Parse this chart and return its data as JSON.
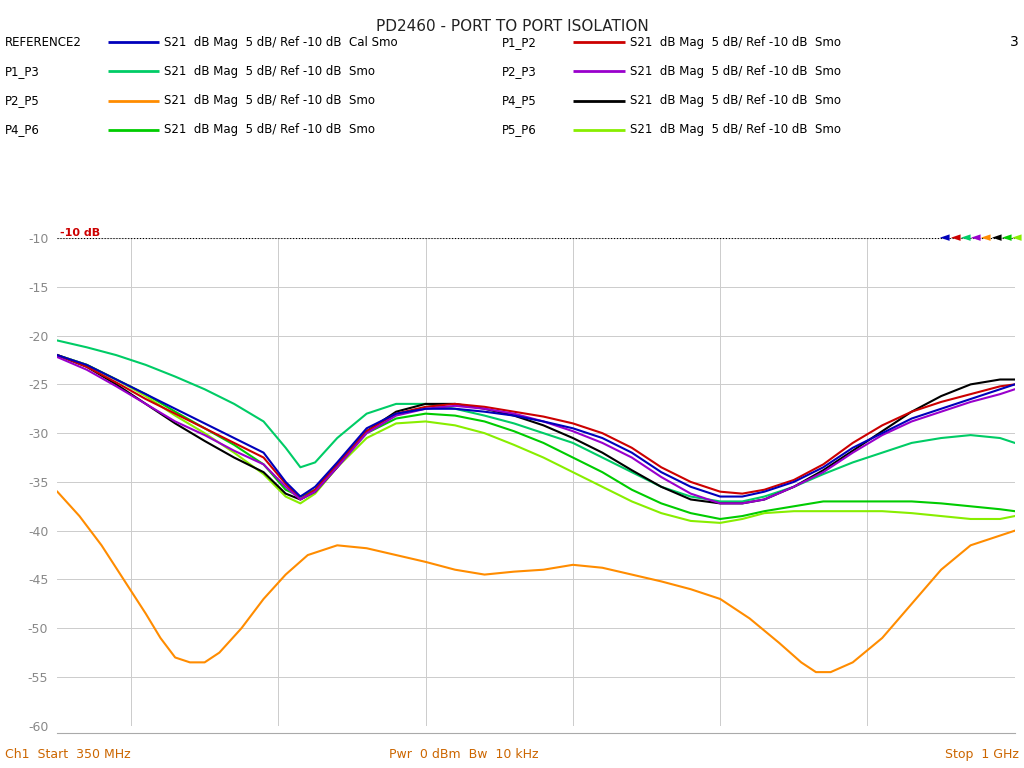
{
  "title": "PD2460 - PORT TO PORT ISOLATION",
  "xlabel_left": "Ch1  Start  350 MHz",
  "xlabel_center": "Pwr  0 dBm  Bw  10 kHz",
  "xlabel_right": "Stop  1 GHz",
  "ref_label": "-10 dB",
  "channel_number": "3",
  "xstart": 350,
  "xstop": 1000,
  "ymin": -60,
  "ymax": -10,
  "ytick_step": 5,
  "background_color": "#ffffff",
  "grid_color": "#cccccc",
  "traces": [
    {
      "name": "REFERENCE2",
      "label": "S21  dB Mag  5 dB/ Ref -10 dB  Cal Smo",
      "color": "#0000bb",
      "lw": 1.5,
      "zorder": 5,
      "points": [
        [
          350,
          -22.0
        ],
        [
          370,
          -23.0
        ],
        [
          390,
          -24.5
        ],
        [
          410,
          -26.0
        ],
        [
          430,
          -27.5
        ],
        [
          450,
          -29.0
        ],
        [
          470,
          -30.5
        ],
        [
          490,
          -32.0
        ],
        [
          505,
          -35.0
        ],
        [
          515,
          -36.5
        ],
        [
          525,
          -35.5
        ],
        [
          540,
          -33.0
        ],
        [
          560,
          -29.5
        ],
        [
          580,
          -28.0
        ],
        [
          600,
          -27.5
        ],
        [
          620,
          -27.5
        ],
        [
          640,
          -27.8
        ],
        [
          660,
          -28.2
        ],
        [
          680,
          -28.8
        ],
        [
          700,
          -29.5
        ],
        [
          720,
          -30.5
        ],
        [
          740,
          -32.0
        ],
        [
          760,
          -34.0
        ],
        [
          780,
          -35.5
        ],
        [
          800,
          -36.5
        ],
        [
          815,
          -36.5
        ],
        [
          830,
          -36.0
        ],
        [
          850,
          -35.0
        ],
        [
          870,
          -33.5
        ],
        [
          890,
          -31.5
        ],
        [
          910,
          -30.0
        ],
        [
          930,
          -28.5
        ],
        [
          950,
          -27.5
        ],
        [
          970,
          -26.5
        ],
        [
          990,
          -25.5
        ],
        [
          1000,
          -25.0
        ]
      ]
    },
    {
      "name": "P1_P2",
      "label": "S21  dB Mag  5 dB/ Ref -10 dB  Smo",
      "color": "#cc0000",
      "lw": 1.5,
      "zorder": 4,
      "points": [
        [
          350,
          -22.0
        ],
        [
          370,
          -23.2
        ],
        [
          390,
          -24.8
        ],
        [
          410,
          -26.5
        ],
        [
          430,
          -28.0
        ],
        [
          450,
          -29.5
        ],
        [
          470,
          -31.0
        ],
        [
          490,
          -32.5
        ],
        [
          505,
          -35.2
        ],
        [
          515,
          -36.8
        ],
        [
          525,
          -35.8
        ],
        [
          540,
          -33.2
        ],
        [
          560,
          -29.8
        ],
        [
          580,
          -28.0
        ],
        [
          600,
          -27.3
        ],
        [
          620,
          -27.0
        ],
        [
          640,
          -27.3
        ],
        [
          660,
          -27.8
        ],
        [
          680,
          -28.3
        ],
        [
          700,
          -29.0
        ],
        [
          720,
          -30.0
        ],
        [
          740,
          -31.5
        ],
        [
          760,
          -33.5
        ],
        [
          780,
          -35.0
        ],
        [
          800,
          -36.0
        ],
        [
          815,
          -36.2
        ],
        [
          830,
          -35.8
        ],
        [
          850,
          -34.8
        ],
        [
          870,
          -33.2
        ],
        [
          890,
          -31.0
        ],
        [
          910,
          -29.2
        ],
        [
          930,
          -27.8
        ],
        [
          950,
          -26.8
        ],
        [
          970,
          -26.0
        ],
        [
          990,
          -25.2
        ],
        [
          1000,
          -25.0
        ]
      ]
    },
    {
      "name": "P1_P3",
      "label": "S21  dB Mag  5 dB/ Ref -10 dB  Smo",
      "color": "#00cc66",
      "lw": 1.5,
      "zorder": 3,
      "points": [
        [
          350,
          -20.5
        ],
        [
          370,
          -21.2
        ],
        [
          390,
          -22.0
        ],
        [
          410,
          -23.0
        ],
        [
          430,
          -24.2
        ],
        [
          450,
          -25.5
        ],
        [
          470,
          -27.0
        ],
        [
          490,
          -28.8
        ],
        [
          505,
          -31.5
        ],
        [
          515,
          -33.5
        ],
        [
          525,
          -33.0
        ],
        [
          540,
          -30.5
        ],
        [
          560,
          -28.0
        ],
        [
          580,
          -27.0
        ],
        [
          600,
          -27.0
        ],
        [
          620,
          -27.5
        ],
        [
          640,
          -28.2
        ],
        [
          660,
          -29.0
        ],
        [
          680,
          -30.0
        ],
        [
          700,
          -31.0
        ],
        [
          720,
          -32.5
        ],
        [
          740,
          -34.0
        ],
        [
          760,
          -35.5
        ],
        [
          780,
          -36.5
        ],
        [
          800,
          -37.0
        ],
        [
          815,
          -37.0
        ],
        [
          830,
          -36.5
        ],
        [
          850,
          -35.5
        ],
        [
          870,
          -34.2
        ],
        [
          890,
          -33.0
        ],
        [
          910,
          -32.0
        ],
        [
          930,
          -31.0
        ],
        [
          950,
          -30.5
        ],
        [
          970,
          -30.2
        ],
        [
          990,
          -30.5
        ],
        [
          1000,
          -31.0
        ]
      ]
    },
    {
      "name": "P2_P3",
      "label": "S21  dB Mag  5 dB/ Ref -10 dB  Smo",
      "color": "#9900cc",
      "lw": 1.5,
      "zorder": 4,
      "points": [
        [
          350,
          -22.2
        ],
        [
          370,
          -23.5
        ],
        [
          390,
          -25.2
        ],
        [
          410,
          -27.0
        ],
        [
          430,
          -28.8
        ],
        [
          450,
          -30.2
        ],
        [
          470,
          -31.8
        ],
        [
          490,
          -33.2
        ],
        [
          505,
          -35.5
        ],
        [
          515,
          -36.8
        ],
        [
          525,
          -36.0
        ],
        [
          540,
          -33.5
        ],
        [
          560,
          -30.0
        ],
        [
          580,
          -28.2
        ],
        [
          600,
          -27.5
        ],
        [
          620,
          -27.2
        ],
        [
          640,
          -27.5
        ],
        [
          660,
          -28.0
        ],
        [
          680,
          -28.8
        ],
        [
          700,
          -29.8
        ],
        [
          720,
          -31.0
        ],
        [
          740,
          -32.5
        ],
        [
          760,
          -34.5
        ],
        [
          780,
          -36.2
        ],
        [
          800,
          -37.2
        ],
        [
          815,
          -37.2
        ],
        [
          830,
          -36.8
        ],
        [
          850,
          -35.5
        ],
        [
          870,
          -34.0
        ],
        [
          890,
          -32.0
        ],
        [
          910,
          -30.2
        ],
        [
          930,
          -28.8
        ],
        [
          950,
          -27.8
        ],
        [
          970,
          -26.8
        ],
        [
          990,
          -26.0
        ],
        [
          1000,
          -25.5
        ]
      ]
    },
    {
      "name": "P2_P5",
      "label": "S21  dB Mag  5 dB/ Ref -10 dB  Smo",
      "color": "#ff8c00",
      "lw": 1.5,
      "zorder": 6,
      "points": [
        [
          350,
          -36.0
        ],
        [
          365,
          -38.5
        ],
        [
          380,
          -41.5
        ],
        [
          395,
          -45.0
        ],
        [
          410,
          -48.5
        ],
        [
          420,
          -51.0
        ],
        [
          430,
          -53.0
        ],
        [
          440,
          -53.5
        ],
        [
          450,
          -53.5
        ],
        [
          460,
          -52.5
        ],
        [
          475,
          -50.0
        ],
        [
          490,
          -47.0
        ],
        [
          505,
          -44.5
        ],
        [
          520,
          -42.5
        ],
        [
          540,
          -41.5
        ],
        [
          560,
          -41.8
        ],
        [
          580,
          -42.5
        ],
        [
          600,
          -43.2
        ],
        [
          620,
          -44.0
        ],
        [
          640,
          -44.5
        ],
        [
          660,
          -44.2
        ],
        [
          680,
          -44.0
        ],
        [
          700,
          -43.5
        ],
        [
          720,
          -43.8
        ],
        [
          740,
          -44.5
        ],
        [
          760,
          -45.2
        ],
        [
          780,
          -46.0
        ],
        [
          800,
          -47.0
        ],
        [
          820,
          -49.0
        ],
        [
          840,
          -51.5
        ],
        [
          855,
          -53.5
        ],
        [
          865,
          -54.5
        ],
        [
          875,
          -54.5
        ],
        [
          890,
          -53.5
        ],
        [
          910,
          -51.0
        ],
        [
          930,
          -47.5
        ],
        [
          950,
          -44.0
        ],
        [
          970,
          -41.5
        ],
        [
          990,
          -40.5
        ],
        [
          1000,
          -40.0
        ]
      ]
    },
    {
      "name": "P4_P5",
      "label": "S21  dB Mag  5 dB/ Ref -10 dB  Smo",
      "color": "#000000",
      "lw": 1.5,
      "zorder": 3,
      "points": [
        [
          350,
          -22.0
        ],
        [
          370,
          -23.2
        ],
        [
          390,
          -25.0
        ],
        [
          410,
          -27.0
        ],
        [
          430,
          -29.0
        ],
        [
          450,
          -30.8
        ],
        [
          470,
          -32.5
        ],
        [
          490,
          -34.0
        ],
        [
          505,
          -36.2
        ],
        [
          515,
          -36.8
        ],
        [
          525,
          -36.0
        ],
        [
          540,
          -33.5
        ],
        [
          560,
          -29.8
        ],
        [
          580,
          -27.8
        ],
        [
          600,
          -27.0
        ],
        [
          620,
          -27.0
        ],
        [
          640,
          -27.5
        ],
        [
          660,
          -28.2
        ],
        [
          680,
          -29.2
        ],
        [
          700,
          -30.5
        ],
        [
          720,
          -32.0
        ],
        [
          740,
          -33.8
        ],
        [
          760,
          -35.5
        ],
        [
          780,
          -36.8
        ],
        [
          800,
          -37.2
        ],
        [
          815,
          -37.2
        ],
        [
          830,
          -36.8
        ],
        [
          850,
          -35.5
        ],
        [
          870,
          -33.8
        ],
        [
          890,
          -31.8
        ],
        [
          910,
          -29.8
        ],
        [
          930,
          -27.8
        ],
        [
          950,
          -26.2
        ],
        [
          970,
          -25.0
        ],
        [
          990,
          -24.5
        ],
        [
          1000,
          -24.5
        ]
      ]
    },
    {
      "name": "P4_P6",
      "label": "S21  dB Mag  5 dB/ Ref -10 dB  Smo",
      "color": "#00cc00",
      "lw": 1.5,
      "zorder": 2,
      "points": [
        [
          350,
          -22.0
        ],
        [
          370,
          -23.0
        ],
        [
          390,
          -24.5
        ],
        [
          410,
          -26.0
        ],
        [
          430,
          -27.8
        ],
        [
          450,
          -29.5
        ],
        [
          470,
          -31.2
        ],
        [
          490,
          -33.2
        ],
        [
          505,
          -35.8
        ],
        [
          515,
          -36.5
        ],
        [
          525,
          -35.8
        ],
        [
          540,
          -33.2
        ],
        [
          560,
          -30.0
        ],
        [
          580,
          -28.5
        ],
        [
          600,
          -28.0
        ],
        [
          620,
          -28.2
        ],
        [
          640,
          -28.8
        ],
        [
          660,
          -29.8
        ],
        [
          680,
          -31.0
        ],
        [
          700,
          -32.5
        ],
        [
          720,
          -34.0
        ],
        [
          740,
          -35.8
        ],
        [
          760,
          -37.2
        ],
        [
          780,
          -38.2
        ],
        [
          800,
          -38.8
        ],
        [
          815,
          -38.5
        ],
        [
          830,
          -38.0
        ],
        [
          850,
          -37.5
        ],
        [
          870,
          -37.0
        ],
        [
          890,
          -37.0
        ],
        [
          910,
          -37.0
        ],
        [
          930,
          -37.0
        ],
        [
          950,
          -37.2
        ],
        [
          970,
          -37.5
        ],
        [
          990,
          -37.8
        ],
        [
          1000,
          -38.0
        ]
      ]
    },
    {
      "name": "P5_P6",
      "label": "S21  dB Mag  5 dB/ Ref -10 dB  Smo",
      "color": "#88ee00",
      "lw": 1.5,
      "zorder": 2,
      "points": [
        [
          350,
          -22.0
        ],
        [
          370,
          -23.0
        ],
        [
          390,
          -24.5
        ],
        [
          410,
          -26.2
        ],
        [
          430,
          -28.2
        ],
        [
          450,
          -30.0
        ],
        [
          470,
          -32.0
        ],
        [
          490,
          -34.2
        ],
        [
          505,
          -36.5
        ],
        [
          515,
          -37.2
        ],
        [
          525,
          -36.2
        ],
        [
          540,
          -33.5
        ],
        [
          560,
          -30.5
        ],
        [
          580,
          -29.0
        ],
        [
          600,
          -28.8
        ],
        [
          620,
          -29.2
        ],
        [
          640,
          -30.0
        ],
        [
          660,
          -31.2
        ],
        [
          680,
          -32.5
        ],
        [
          700,
          -34.0
        ],
        [
          720,
          -35.5
        ],
        [
          740,
          -37.0
        ],
        [
          760,
          -38.2
        ],
        [
          780,
          -39.0
        ],
        [
          800,
          -39.2
        ],
        [
          815,
          -38.8
        ],
        [
          830,
          -38.2
        ],
        [
          850,
          -38.0
        ],
        [
          870,
          -38.0
        ],
        [
          890,
          -38.0
        ],
        [
          910,
          -38.0
        ],
        [
          930,
          -38.2
        ],
        [
          950,
          -38.5
        ],
        [
          970,
          -38.8
        ],
        [
          990,
          -38.8
        ],
        [
          1000,
          -38.5
        ]
      ]
    }
  ],
  "legend_rows": [
    [
      "REFERENCE2",
      "S21  dB Mag  5 dB/ Ref -10 dB  Cal Smo",
      "#0000bb",
      "P1_P2",
      "S21  dB Mag  5 dB/ Ref -10 dB  Smo",
      "#cc0000"
    ],
    [
      "P1_P3",
      "S21  dB Mag  5 dB/ Ref -10 dB  Smo",
      "#00cc66",
      "P2_P3",
      "S21  dB Mag  5 dB/ Ref -10 dB  Smo",
      "#9900cc"
    ],
    [
      "P2_P5",
      "S21  dB Mag  5 dB/ Ref -10 dB  Smo",
      "#ff8c00",
      "P4_P5",
      "S21  dB Mag  5 dB/ Ref -10 dB  Smo",
      "#000000"
    ],
    [
      "P4_P6",
      "S21  dB Mag  5 dB/ Ref -10 dB  Smo",
      "#00cc00",
      "P5_P6",
      "S21  dB Mag  5 dB/ Ref -10 dB  Smo",
      "#88ee00"
    ]
  ],
  "marker_colors_right_to_left": [
    "#88ee00",
    "#00cc00",
    "#000000",
    "#ff8c00",
    "#9900cc",
    "#00cc66",
    "#cc0000",
    "#0000bb"
  ]
}
